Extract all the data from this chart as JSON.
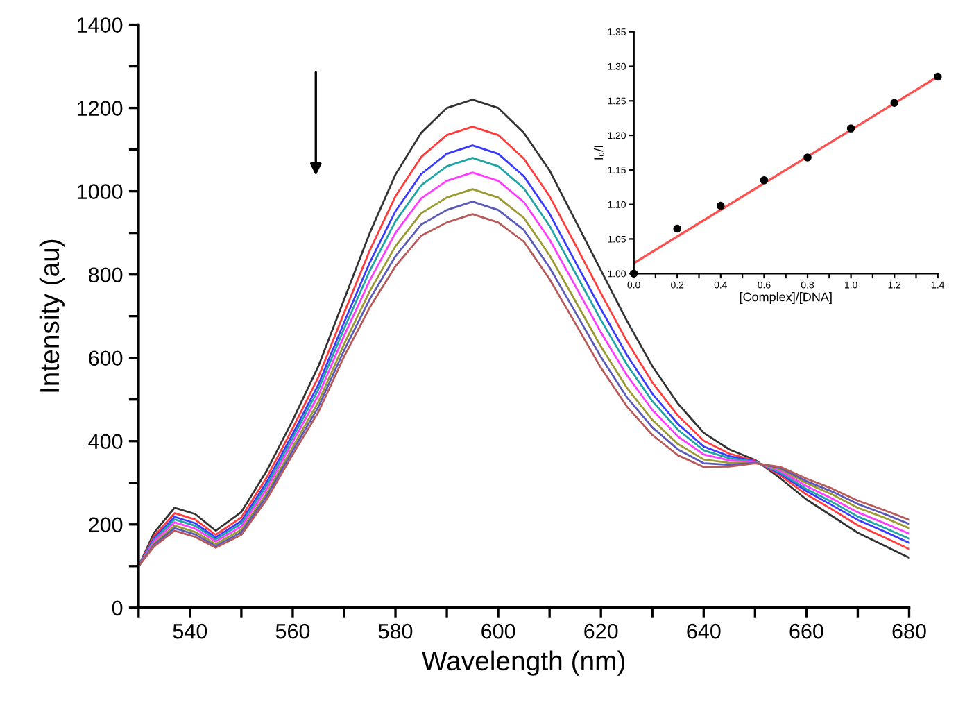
{
  "chart_data": [
    {
      "type": "line",
      "xlabel": "Wavelength (nm)",
      "ylabel": "Intensity (au)",
      "x": [
        530,
        533,
        537,
        541,
        545,
        550,
        555,
        560,
        565,
        570,
        575,
        580,
        585,
        590,
        595,
        600,
        605,
        610,
        615,
        620,
        625,
        630,
        635,
        640,
        645,
        650,
        655,
        660,
        665,
        670,
        675,
        680
      ],
      "series": [
        {
          "color": "#333333",
          "values": [
            100,
            180,
            240,
            225,
            185,
            230,
            330,
            450,
            580,
            740,
            900,
            1040,
            1140,
            1200,
            1220,
            1200,
            1140,
            1050,
            930,
            810,
            690,
            580,
            490,
            420,
            380,
            355,
            310,
            260,
            220,
            180,
            150,
            120
          ]
        },
        {
          "color": "#ff3b3b",
          "values": [
            100,
            172,
            227,
            212,
            175,
            217,
            314,
            431,
            554,
            708,
            858,
            988,
            1082,
            1135,
            1155,
            1135,
            1078,
            988,
            872,
            755,
            641,
            541,
            461,
            401,
            370,
            353,
            317,
            272,
            236,
            198,
            170,
            141
          ]
        },
        {
          "color": "#3a3aff",
          "values": [
            100,
            167,
            218,
            203,
            169,
            208,
            303,
            417,
            536,
            685,
            829,
            952,
            1041,
            1090,
            1110,
            1090,
            1036,
            946,
            831,
            717,
            608,
            514,
            441,
            387,
            364,
            352,
            321,
            280,
            246,
            211,
            184,
            156
          ]
        },
        {
          "color": "#1fa5a5",
          "values": [
            100,
            163,
            212,
            197,
            164,
            202,
            295,
            408,
            524,
            670,
            809,
            928,
            1014,
            1060,
            1080,
            1060,
            1007,
            917,
            804,
            691,
            585,
            496,
            427,
            378,
            359,
            351,
            324,
            285,
            254,
            219,
            193,
            166
          ]
        },
        {
          "color": "#ff3bff",
          "values": [
            100,
            159,
            205,
            190,
            159,
            195,
            286,
            398,
            510,
            653,
            786,
            900,
            983,
            1025,
            1045,
            1025,
            974,
            884,
            773,
            661,
            559,
            475,
            411,
            368,
            354,
            350,
            328,
            292,
            262,
            229,
            204,
            178
          ]
        },
        {
          "color": "#9a9a30",
          "values": [
            100,
            154,
            197,
            182,
            153,
            187,
            276,
            386,
            494,
            633,
            760,
            868,
            947,
            985,
            1005,
            985,
            936,
            846,
            737,
            627,
            529,
            451,
            393,
            356,
            348,
            349,
            332,
            299,
            272,
            240,
            217,
            191
          ]
        },
        {
          "color": "#5a5ab8",
          "values": [
            100,
            151,
            191,
            176,
            148,
            181,
            269,
            377,
            482,
            618,
            741,
            844,
            920,
            955,
            975,
            955,
            907,
            817,
            710,
            602,
            506,
            433,
            380,
            347,
            343,
            348,
            335,
            304,
            279,
            249,
            226,
            201
          ]
        },
        {
          "color": "#b85a5a",
          "values": [
            100,
            147,
            185,
            170,
            144,
            175,
            261,
            368,
            470,
            603,
            721,
            820,
            893,
            925,
            945,
            925,
            879,
            789,
            683,
            576,
            484,
            415,
            366,
            338,
            339,
            347,
            338,
            310,
            286,
            257,
            235,
            211
          ]
        }
      ],
      "xlim": [
        530,
        680
      ],
      "xticks": [
        {
          "value": 530,
          "label": null
        },
        540,
        {
          "value": 550,
          "label": null
        },
        560,
        {
          "value": 570,
          "label": null
        },
        580,
        {
          "value": 590,
          "label": null
        },
        600,
        {
          "value": 610,
          "label": null
        },
        620,
        {
          "value": 630,
          "label": null
        },
        640,
        {
          "value": 650,
          "label": null
        },
        660,
        {
          "value": 670,
          "label": null
        },
        680
      ],
      "ylim": [
        0,
        1400
      ],
      "yticks": [
        0,
        {
          "value": 100,
          "label": null
        },
        200,
        {
          "value": 300,
          "label": null
        },
        400,
        {
          "value": 500,
          "label": null
        },
        600,
        {
          "value": 700,
          "label": null
        },
        800,
        {
          "value": 900,
          "label": null
        },
        1000,
        {
          "value": 1100,
          "label": null
        },
        1200,
        {
          "value": 1300,
          "label": null
        },
        1400
      ],
      "grid": false,
      "marker": "none",
      "line_style": "solid"
    },
    {
      "type": "scatter",
      "xlabel": "[Complex]/[DNA]",
      "ylabel": "I₀/I",
      "series": [
        {
          "type": "scatter",
          "marker": "circle",
          "color": "#000000",
          "x": [
            0,
            0.2,
            0.4,
            0.6,
            0.8,
            1.0,
            1.2,
            1.4
          ],
          "values": [
            1.0,
            1.065,
            1.098,
            1.135,
            1.168,
            1.21,
            1.247,
            1.285
          ]
        },
        {
          "type": "line",
          "color": "#ff5050",
          "x": [
            0,
            1.4
          ],
          "values": [
            1.015,
            1.285
          ]
        }
      ],
      "xlim": [
        0,
        1.4
      ],
      "xticks": [
        {
          "value": 0,
          "label": "0.0"
        },
        {
          "value": 0.1,
          "label": null
        },
        0.2,
        {
          "value": 0.3,
          "label": null
        },
        0.4,
        {
          "value": 0.5,
          "label": null
        },
        0.6,
        {
          "value": 0.7,
          "label": null
        },
        0.8,
        {
          "value": 0.9,
          "label": null
        },
        {
          "value": 1.0,
          "label": "1.0"
        },
        {
          "value": 1.1,
          "label": null
        },
        1.2,
        {
          "value": 1.3,
          "label": null
        },
        1.4
      ],
      "ylim": [
        1.0,
        1.35
      ],
      "yticks": [
        {
          "value": 1.0,
          "label": "1.00"
        },
        1.05,
        {
          "value": 1.1,
          "label": "1.10"
        },
        1.15,
        {
          "value": 1.2,
          "label": "1.20"
        },
        1.25,
        {
          "value": 1.3,
          "label": "1.30"
        },
        1.35
      ],
      "grid": false
    }
  ]
}
